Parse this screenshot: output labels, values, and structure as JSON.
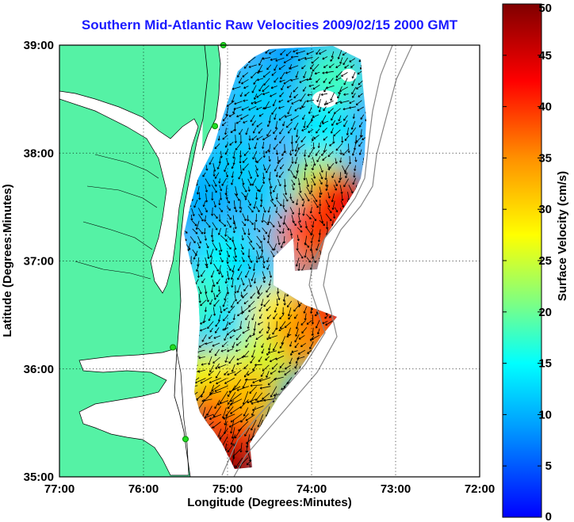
{
  "chart_data": {
    "type": "heatmap",
    "title": "Southern Mid-Atlantic Raw Velocities 2009/02/15 2000 GMT",
    "xlabel": "Longitude (Degrees:Minutes)",
    "ylabel": "Latitude (Degrees:Minutes)",
    "colorbar_label": "Surface Velocity (cm/s)",
    "x_ticks": [
      "77:00",
      "76:00",
      "75:00",
      "74:00",
      "73:00",
      "72:00"
    ],
    "y_ticks": [
      "39:00",
      "38:00",
      "37:00",
      "36:00",
      "35:00"
    ],
    "colorbar_ticks": [
      "0",
      "5",
      "10",
      "15",
      "20",
      "25",
      "30",
      "35",
      "40",
      "45",
      "50"
    ],
    "xlim": [
      -77,
      -72
    ],
    "ylim": [
      35,
      39
    ],
    "clim": [
      0,
      50
    ],
    "grid": "dotted",
    "colormap": [
      "#0000ff",
      "#0080ff",
      "#00ffff",
      "#80ff80",
      "#ffff00",
      "#ff8000",
      "#ff0000",
      "#800000"
    ],
    "land_color": "#55f2a5",
    "regions": [
      {
        "lon": -74.6,
        "lat": 38.5,
        "speed": 12
      },
      {
        "lon": -74.2,
        "lat": 38.9,
        "speed": 9
      },
      {
        "lon": -73.75,
        "lat": 38.7,
        "speed": 18
      },
      {
        "lon": -73.85,
        "lat": 38.2,
        "speed": 14
      },
      {
        "lon": -74.9,
        "lat": 37.9,
        "speed": 12
      },
      {
        "lon": -75.3,
        "lat": 37.6,
        "speed": 10
      },
      {
        "lon": -74.4,
        "lat": 37.5,
        "speed": 12
      },
      {
        "lon": -73.9,
        "lat": 37.7,
        "speed": 24
      },
      {
        "lon": -73.7,
        "lat": 37.55,
        "speed": 43
      },
      {
        "lon": -74.0,
        "lat": 37.3,
        "speed": 40
      },
      {
        "lon": -74.3,
        "lat": 37.0,
        "speed": 37
      },
      {
        "lon": -75.0,
        "lat": 37.0,
        "speed": 15
      },
      {
        "lon": -74.6,
        "lat": 36.9,
        "speed": 12
      },
      {
        "lon": -75.3,
        "lat": 36.6,
        "speed": 18
      },
      {
        "lon": -74.9,
        "lat": 36.4,
        "speed": 13
      },
      {
        "lon": -74.4,
        "lat": 36.5,
        "speed": 28
      },
      {
        "lon": -73.9,
        "lat": 36.45,
        "speed": 42
      },
      {
        "lon": -74.2,
        "lat": 36.25,
        "speed": 35
      },
      {
        "lon": -74.65,
        "lat": 36.05,
        "speed": 25
      },
      {
        "lon": -75.25,
        "lat": 35.9,
        "speed": 27
      },
      {
        "lon": -75.1,
        "lat": 35.6,
        "speed": 39
      },
      {
        "lon": -74.75,
        "lat": 35.75,
        "speed": 32
      },
      {
        "lon": -74.9,
        "lat": 35.3,
        "speed": 40
      },
      {
        "lon": -75.0,
        "lat": 35.05,
        "speed": 48
      }
    ],
    "stations": [
      {
        "lon": -75.05,
        "lat": 39.0
      },
      {
        "lon": -75.15,
        "lat": 38.25
      },
      {
        "lon": -75.65,
        "lat": 36.2
      },
      {
        "lon": -75.5,
        "lat": 35.35
      }
    ]
  }
}
